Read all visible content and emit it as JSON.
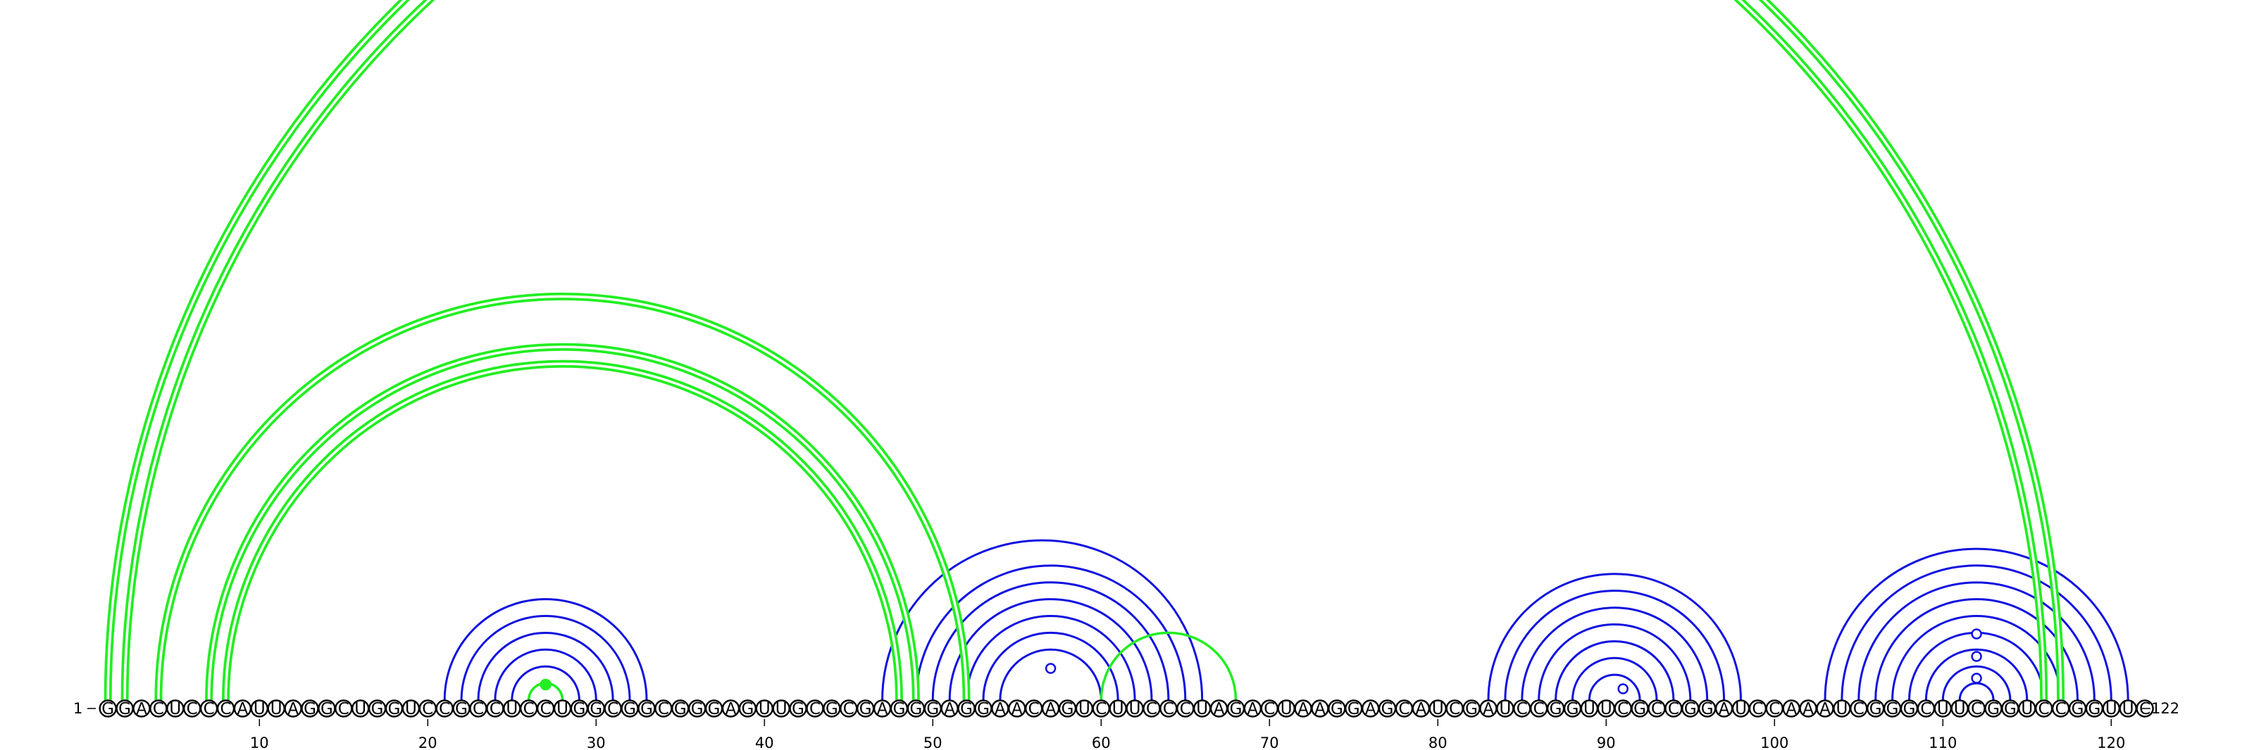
{
  "sequence": "GGACUCCCAUUAGGCUGGUCCGCCUCCUGGCGGCGGGAGUUGCGCGAGGGAGGAACAGUCUUCCCUAGACUAAGGAGCAUCGAUCCGGUUCGCCGGAUCCAAAUCGGGCUUCGGUCCGGUUC",
  "start_label": "1",
  "end_label": "122",
  "ticks": [
    10,
    20,
    30,
    40,
    50,
    60,
    70,
    80,
    90,
    100,
    110,
    120
  ],
  "colors": {
    "blue": "#1010e0",
    "green": "#22ee22",
    "green_edge": "#009900",
    "text": "#000000"
  },
  "pairs_blue": [
    [
      21,
      33
    ],
    [
      22,
      32
    ],
    [
      23,
      31
    ],
    [
      24,
      30
    ],
    [
      25,
      29
    ],
    [
      26,
      28
    ],
    [
      47,
      66
    ],
    [
      49,
      65
    ],
    [
      50,
      64
    ],
    [
      51,
      63
    ],
    [
      52,
      62
    ],
    [
      53,
      61
    ],
    [
      54,
      60
    ],
    [
      83,
      98
    ],
    [
      84,
      97
    ],
    [
      85,
      96
    ],
    [
      86,
      95
    ],
    [
      87,
      94
    ],
    [
      88,
      93
    ],
    [
      89,
      92
    ],
    [
      103,
      121
    ],
    [
      104,
      120
    ],
    [
      105,
      119
    ],
    [
      106,
      118
    ],
    [
      107,
      117
    ],
    [
      108,
      116
    ],
    [
      109,
      115
    ],
    [
      110,
      114
    ],
    [
      111,
      113
    ]
  ],
  "pairs_green": [
    [
      1,
      117
    ],
    [
      2,
      116
    ],
    [
      4,
      52
    ],
    [
      7,
      49
    ],
    [
      8,
      48
    ],
    [
      26,
      28
    ],
    [
      60,
      68
    ]
  ],
  "green_double": [
    [
      1,
      117
    ],
    [
      2,
      116
    ],
    [
      4,
      52
    ],
    [
      7,
      49
    ],
    [
      8,
      48
    ]
  ],
  "markers": [
    {
      "pos": 27,
      "height": 22,
      "style": "filled"
    },
    {
      "pos": 57,
      "height": 45,
      "style": "open"
    },
    {
      "pos": 91,
      "height": 16,
      "style": "open"
    },
    {
      "pos": 112,
      "height": 31,
      "style": "open"
    },
    {
      "pos": 112,
      "height": 62,
      "style": "open"
    },
    {
      "pos": 112,
      "height": 94,
      "style": "open"
    }
  ]
}
